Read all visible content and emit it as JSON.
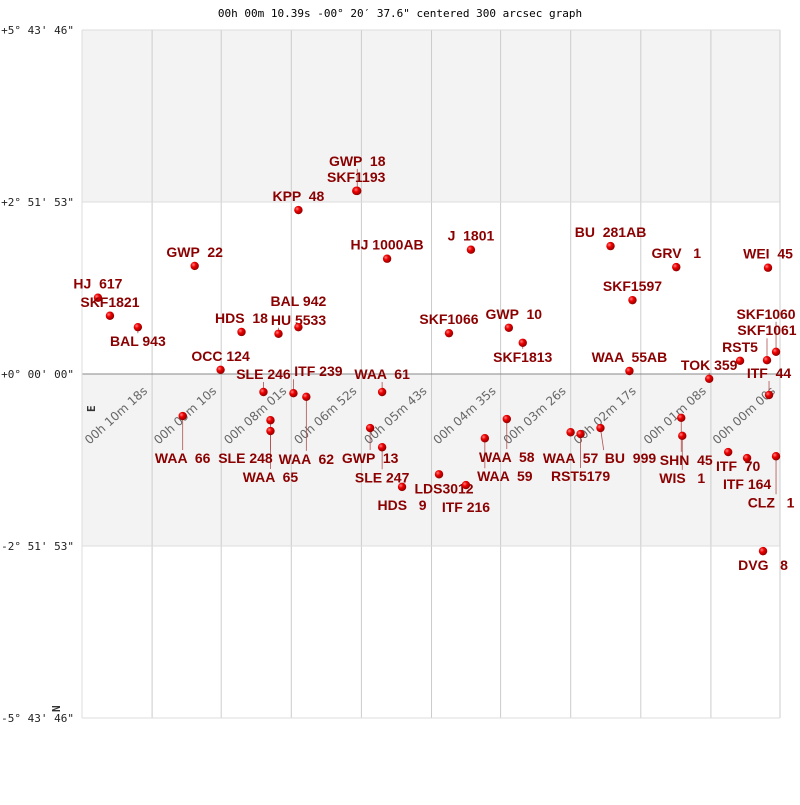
{
  "chart_data": {
    "type": "scatter",
    "title": "00h 00m 10.39s -00° 20′ 37.6\" centered 300 arcsec graph",
    "y_tick_labels": [
      "+5° 43' 46\"",
      "+2° 51' 53\"",
      "+0° 00' 00\"",
      "-2° 51' 53\"",
      "-5° 43' 46\""
    ],
    "x_tick_labels": [
      "00h 10m 18s",
      "00h 09m 10s",
      "00h 08m 01s",
      "00h 06m 52s",
      "00h 05m 43s",
      "00h 04m 35s",
      "00h 03m 26s",
      "00h 02m 17s",
      "00h 01m 08s",
      "00h 00m 00s"
    ],
    "x_tick_values_sec": [
      618,
      550,
      481,
      412,
      343,
      275,
      206,
      137,
      68,
      0
    ],
    "xlim_sec": [
      687,
      0
    ],
    "ylim_deg": [
      -5.7294,
      5.7294
    ],
    "compass": {
      "east": "E",
      "north": "N"
    },
    "grid": true,
    "colors": {
      "marker": "#dd0000",
      "label": "#8b0000",
      "band": "#f3f3f3",
      "grid": "#cccccc"
    },
    "stars": [
      {
        "name": "HJ  617",
        "ra_sec": 671.3,
        "dec_deg": 1.27
      },
      {
        "name": "SKF1821",
        "ra_sec": 659.5,
        "dec_deg": 0.97
      },
      {
        "name": "BAL 943",
        "ra_sec": 632.0,
        "dec_deg": 0.78
      },
      {
        "name": "GWP  22",
        "ra_sec": 576.1,
        "dec_deg": 1.8
      },
      {
        "name": "OCC 124",
        "ra_sec": 550.6,
        "dec_deg": 0.07
      },
      {
        "name": "HDS  18",
        "ra_sec": 530.0,
        "dec_deg": 0.7
      },
      {
        "name": "HU 5533",
        "ra_sec": 493.6,
        "dec_deg": 0.67
      },
      {
        "name": "BAL 942",
        "ra_sec": 474.0,
        "dec_deg": 0.78
      },
      {
        "name": "KPP  48",
        "ra_sec": 474.0,
        "dec_deg": 2.73
      },
      {
        "name": "SKF1193",
        "ra_sec": 417.1,
        "dec_deg": 3.05
      },
      {
        "name": "GWP  18",
        "ra_sec": 416.1,
        "dec_deg": 3.05
      },
      {
        "name": "HJ 1000AB",
        "ra_sec": 386.7,
        "dec_deg": 1.92
      },
      {
        "name": "J  1801",
        "ra_sec": 304.2,
        "dec_deg": 2.07
      },
      {
        "name": "SKF1066",
        "ra_sec": 325.8,
        "dec_deg": 0.68
      },
      {
        "name": "GWP  10",
        "ra_sec": 266.9,
        "dec_deg": 0.77
      },
      {
        "name": "SKF1813",
        "ra_sec": 253.2,
        "dec_deg": 0.52
      },
      {
        "name": "BU  281AB",
        "ra_sec": 166.8,
        "dec_deg": 2.13
      },
      {
        "name": "GRV   1",
        "ra_sec": 102.1,
        "dec_deg": 1.78
      },
      {
        "name": "WEI  45",
        "ra_sec": 11.8,
        "dec_deg": 1.77
      },
      {
        "name": "SKF1597",
        "ra_sec": 145.2,
        "dec_deg": 1.23
      },
      {
        "name": "WAA  55AB",
        "ra_sec": 148.2,
        "dec_deg": 0.05
      },
      {
        "name": "RST5",
        "ra_sec": 39.3,
        "dec_deg": 0.22
      },
      {
        "name": "SKF1061",
        "ra_sec": 12.8,
        "dec_deg": 0.23
      },
      {
        "name": "SKF1060",
        "ra_sec": 3.9,
        "dec_deg": 0.37
      },
      {
        "name": "TOK 359",
        "ra_sec": 69.7,
        "dec_deg": -0.08
      },
      {
        "name": "ITF  44",
        "ra_sec": 10.8,
        "dec_deg": -0.35
      },
      {
        "name": "WAA  66",
        "ra_sec": 587.9,
        "dec_deg": -0.7
      },
      {
        "name": "SLE 246",
        "ra_sec": 508.4,
        "dec_deg": -0.3
      },
      {
        "name": "ITF 239",
        "ra_sec": 478.9,
        "dec_deg": -0.32
      },
      {
        "name": "WAA  62",
        "ra_sec": 466.2,
        "dec_deg": -0.38
      },
      {
        "name": "SLE 248",
        "ra_sec": 501.5,
        "dec_deg": -0.77
      },
      {
        "name": "WAA  65",
        "ra_sec": 501.5,
        "dec_deg": -0.95
      },
      {
        "name": "WAA  61",
        "ra_sec": 391.6,
        "dec_deg": -0.3
      },
      {
        "name": "GWP  13",
        "ra_sec": 403.4,
        "dec_deg": -0.9
      },
      {
        "name": "SLE 247",
        "ra_sec": 391.6,
        "dec_deg": -1.22
      },
      {
        "name": "LDS3012",
        "ra_sec": 335.6,
        "dec_deg": -1.67
      },
      {
        "name": "HDS   9",
        "ra_sec": 372.0,
        "dec_deg": -1.88
      },
      {
        "name": "ITF 216",
        "ra_sec": 309.1,
        "dec_deg": -1.85
      },
      {
        "name": "WAA  58",
        "ra_sec": 268.9,
        "dec_deg": -0.75
      },
      {
        "name": "WAA  59",
        "ra_sec": 290.5,
        "dec_deg": -1.07
      },
      {
        "name": "WAA  57",
        "ra_sec": 206.1,
        "dec_deg": -0.97
      },
      {
        "name": "RST5179",
        "ra_sec": 196.3,
        "dec_deg": -1.0
      },
      {
        "name": "BU  999",
        "ra_sec": 176.7,
        "dec_deg": -0.9
      },
      {
        "name": "SHN  45",
        "ra_sec": 97.2,
        "dec_deg": -0.73
      },
      {
        "name": "WIS   1",
        "ra_sec": 96.2,
        "dec_deg": -1.03
      },
      {
        "name": "ITF  70",
        "ra_sec": 51.0,
        "dec_deg": -1.3
      },
      {
        "name": "ITF 164",
        "ra_sec": 32.4,
        "dec_deg": -1.4
      },
      {
        "name": "CLZ   1",
        "ra_sec": 3.9,
        "dec_deg": -1.37
      },
      {
        "name": "DVG   8",
        "ra_sec": 16.7,
        "dec_deg": -2.95
      }
    ]
  }
}
